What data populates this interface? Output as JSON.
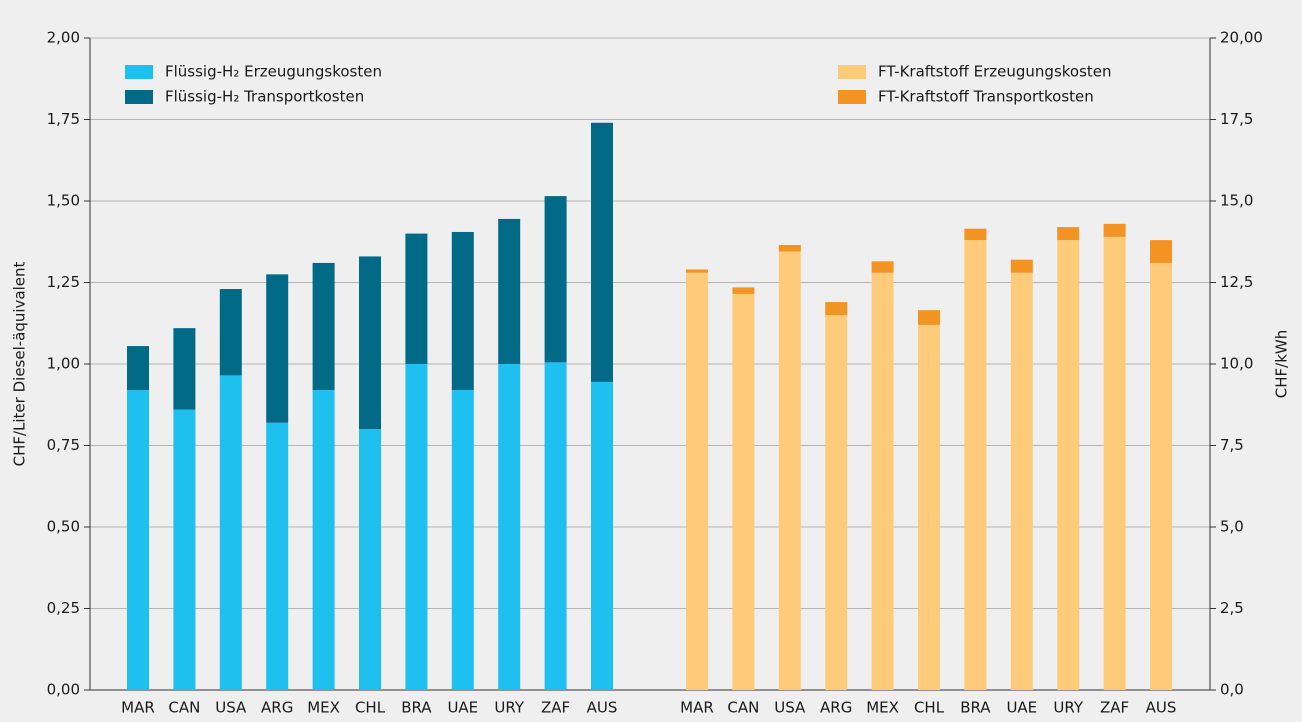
{
  "chart_data": {
    "type": "bar",
    "categories": [
      "MAR",
      "CAN",
      "USA",
      "ARG",
      "MEX",
      "CHL",
      "BRA",
      "UAE",
      "URY",
      "ZAF",
      "AUS"
    ],
    "series": [
      {
        "name": "Flüssig-H₂ Erzeugungskosten",
        "color": "#1ec0f0",
        "values": [
          0.92,
          0.86,
          0.965,
          0.82,
          0.92,
          0.8,
          1.0,
          0.92,
          1.0,
          1.005,
          0.945
        ]
      },
      {
        "name": "Flüssig-H₂ Transportkosten",
        "color": "#006a87",
        "values": [
          0.135,
          0.25,
          0.265,
          0.455,
          0.39,
          0.53,
          0.4,
          0.485,
          0.445,
          0.51,
          0.795
        ]
      },
      {
        "name": "FT-Kraftstoff Erzeugungskosten",
        "color": "#fecb7b",
        "axis": "y2",
        "values": [
          12.8,
          12.15,
          13.45,
          11.5,
          12.8,
          11.2,
          13.8,
          12.8,
          13.8,
          13.9,
          13.1
        ]
      },
      {
        "name": "FT-Kraftstoff Transportkosten",
        "color": "#f39322",
        "axis": "y2",
        "values": [
          0.1,
          0.2,
          0.2,
          0.4,
          0.35,
          0.45,
          0.35,
          0.4,
          0.4,
          0.4,
          0.7
        ]
      }
    ],
    "stacked": true,
    "ylabel": "CHF/Liter Diesel-äquivalent",
    "y2label": "CHF/kWh",
    "ylim": [
      0,
      2
    ],
    "yticks": [
      {
        "value": 0,
        "label": "0,00"
      },
      {
        "value": 0.25,
        "label": "0,25"
      },
      {
        "value": 0.5,
        "label": "0,50"
      },
      {
        "value": 0.75,
        "label": "0,75"
      },
      {
        "value": 1,
        "label": "1,00"
      },
      {
        "value": 1.25,
        "label": "1,25"
      },
      {
        "value": 1.5,
        "label": "1,50"
      },
      {
        "value": 1.75,
        "label": "1,75"
      },
      {
        "value": 2,
        "label": "2,00"
      }
    ],
    "y2lim": [
      0,
      20
    ],
    "y2ticks": [
      {
        "value": 0,
        "label": "0,0"
      },
      {
        "value": 2.5,
        "label": "2,5"
      },
      {
        "value": 5,
        "label": "5,0"
      },
      {
        "value": 7.5,
        "label": "7,5"
      },
      {
        "value": 10,
        "label": "10,0"
      },
      {
        "value": 12.5,
        "label": "12,5"
      },
      {
        "value": 15,
        "label": "15,0"
      },
      {
        "value": 17.5,
        "label": "17,5"
      },
      {
        "value": 20,
        "label": "20,00"
      }
    ],
    "grid": true
  }
}
